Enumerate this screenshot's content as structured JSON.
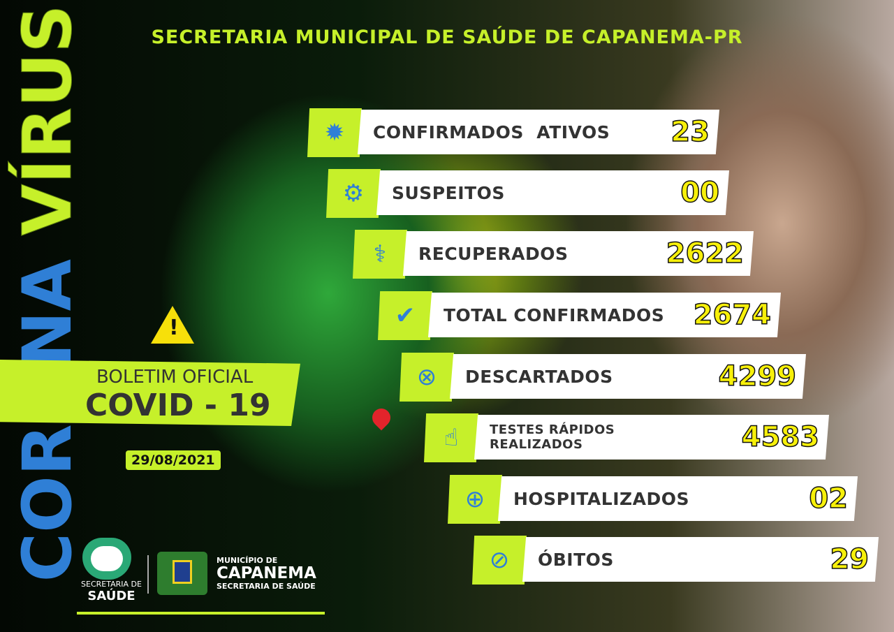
{
  "title": "SECRETARIA MUNICIPAL DE SAÚDE DE CAPANEMA-PR",
  "side": {
    "corona": "CORONA",
    "virus": "VÍRUS"
  },
  "bulletin": {
    "line1": "BOLETIM OFICIAL",
    "line2": "COVID - 19",
    "date": "29/08/2021"
  },
  "colors": {
    "accent": "#c6f02a",
    "blue": "#2f7fd6",
    "number": "#f7f00a"
  },
  "stats": [
    {
      "label": "CONFIRMADOS  ATIVOS",
      "value": "23",
      "icon": "virus-icon",
      "glyph": "✹"
    },
    {
      "label": "SUSPEITOS",
      "value": "00",
      "icon": "gear-search-icon",
      "glyph": "⚙"
    },
    {
      "label": "RECUPERADOS",
      "value": "2622",
      "icon": "stethoscope-icon",
      "glyph": "⚕"
    },
    {
      "label": "TOTAL CONFIRMADOS",
      "value": "2674",
      "icon": "check-circle-icon",
      "glyph": "✔"
    },
    {
      "label": "DESCARTADOS",
      "value": "4299",
      "icon": "x-circle-icon",
      "glyph": "⊗"
    },
    {
      "label": "TESTES RÁPIDOS\nREALIZADOS",
      "value": "4583",
      "icon": "finger-test-icon",
      "glyph": "☝"
    },
    {
      "label": "HOSPITALIZADOS",
      "value": "02",
      "icon": "location-plus-icon",
      "glyph": "⊕"
    },
    {
      "label": "ÓBITOS",
      "value": "29",
      "icon": "prohibited-icon",
      "glyph": "⊘"
    }
  ],
  "logos": {
    "saude1": "SECRETARIA DE",
    "saude2": "SAÚDE",
    "mun1": "MUNICÍPIO DE",
    "mun2": "CAPANEMA",
    "mun3": "SECRETARIA DE SAÚDE",
    "crest_text": "CAPANEMA"
  }
}
